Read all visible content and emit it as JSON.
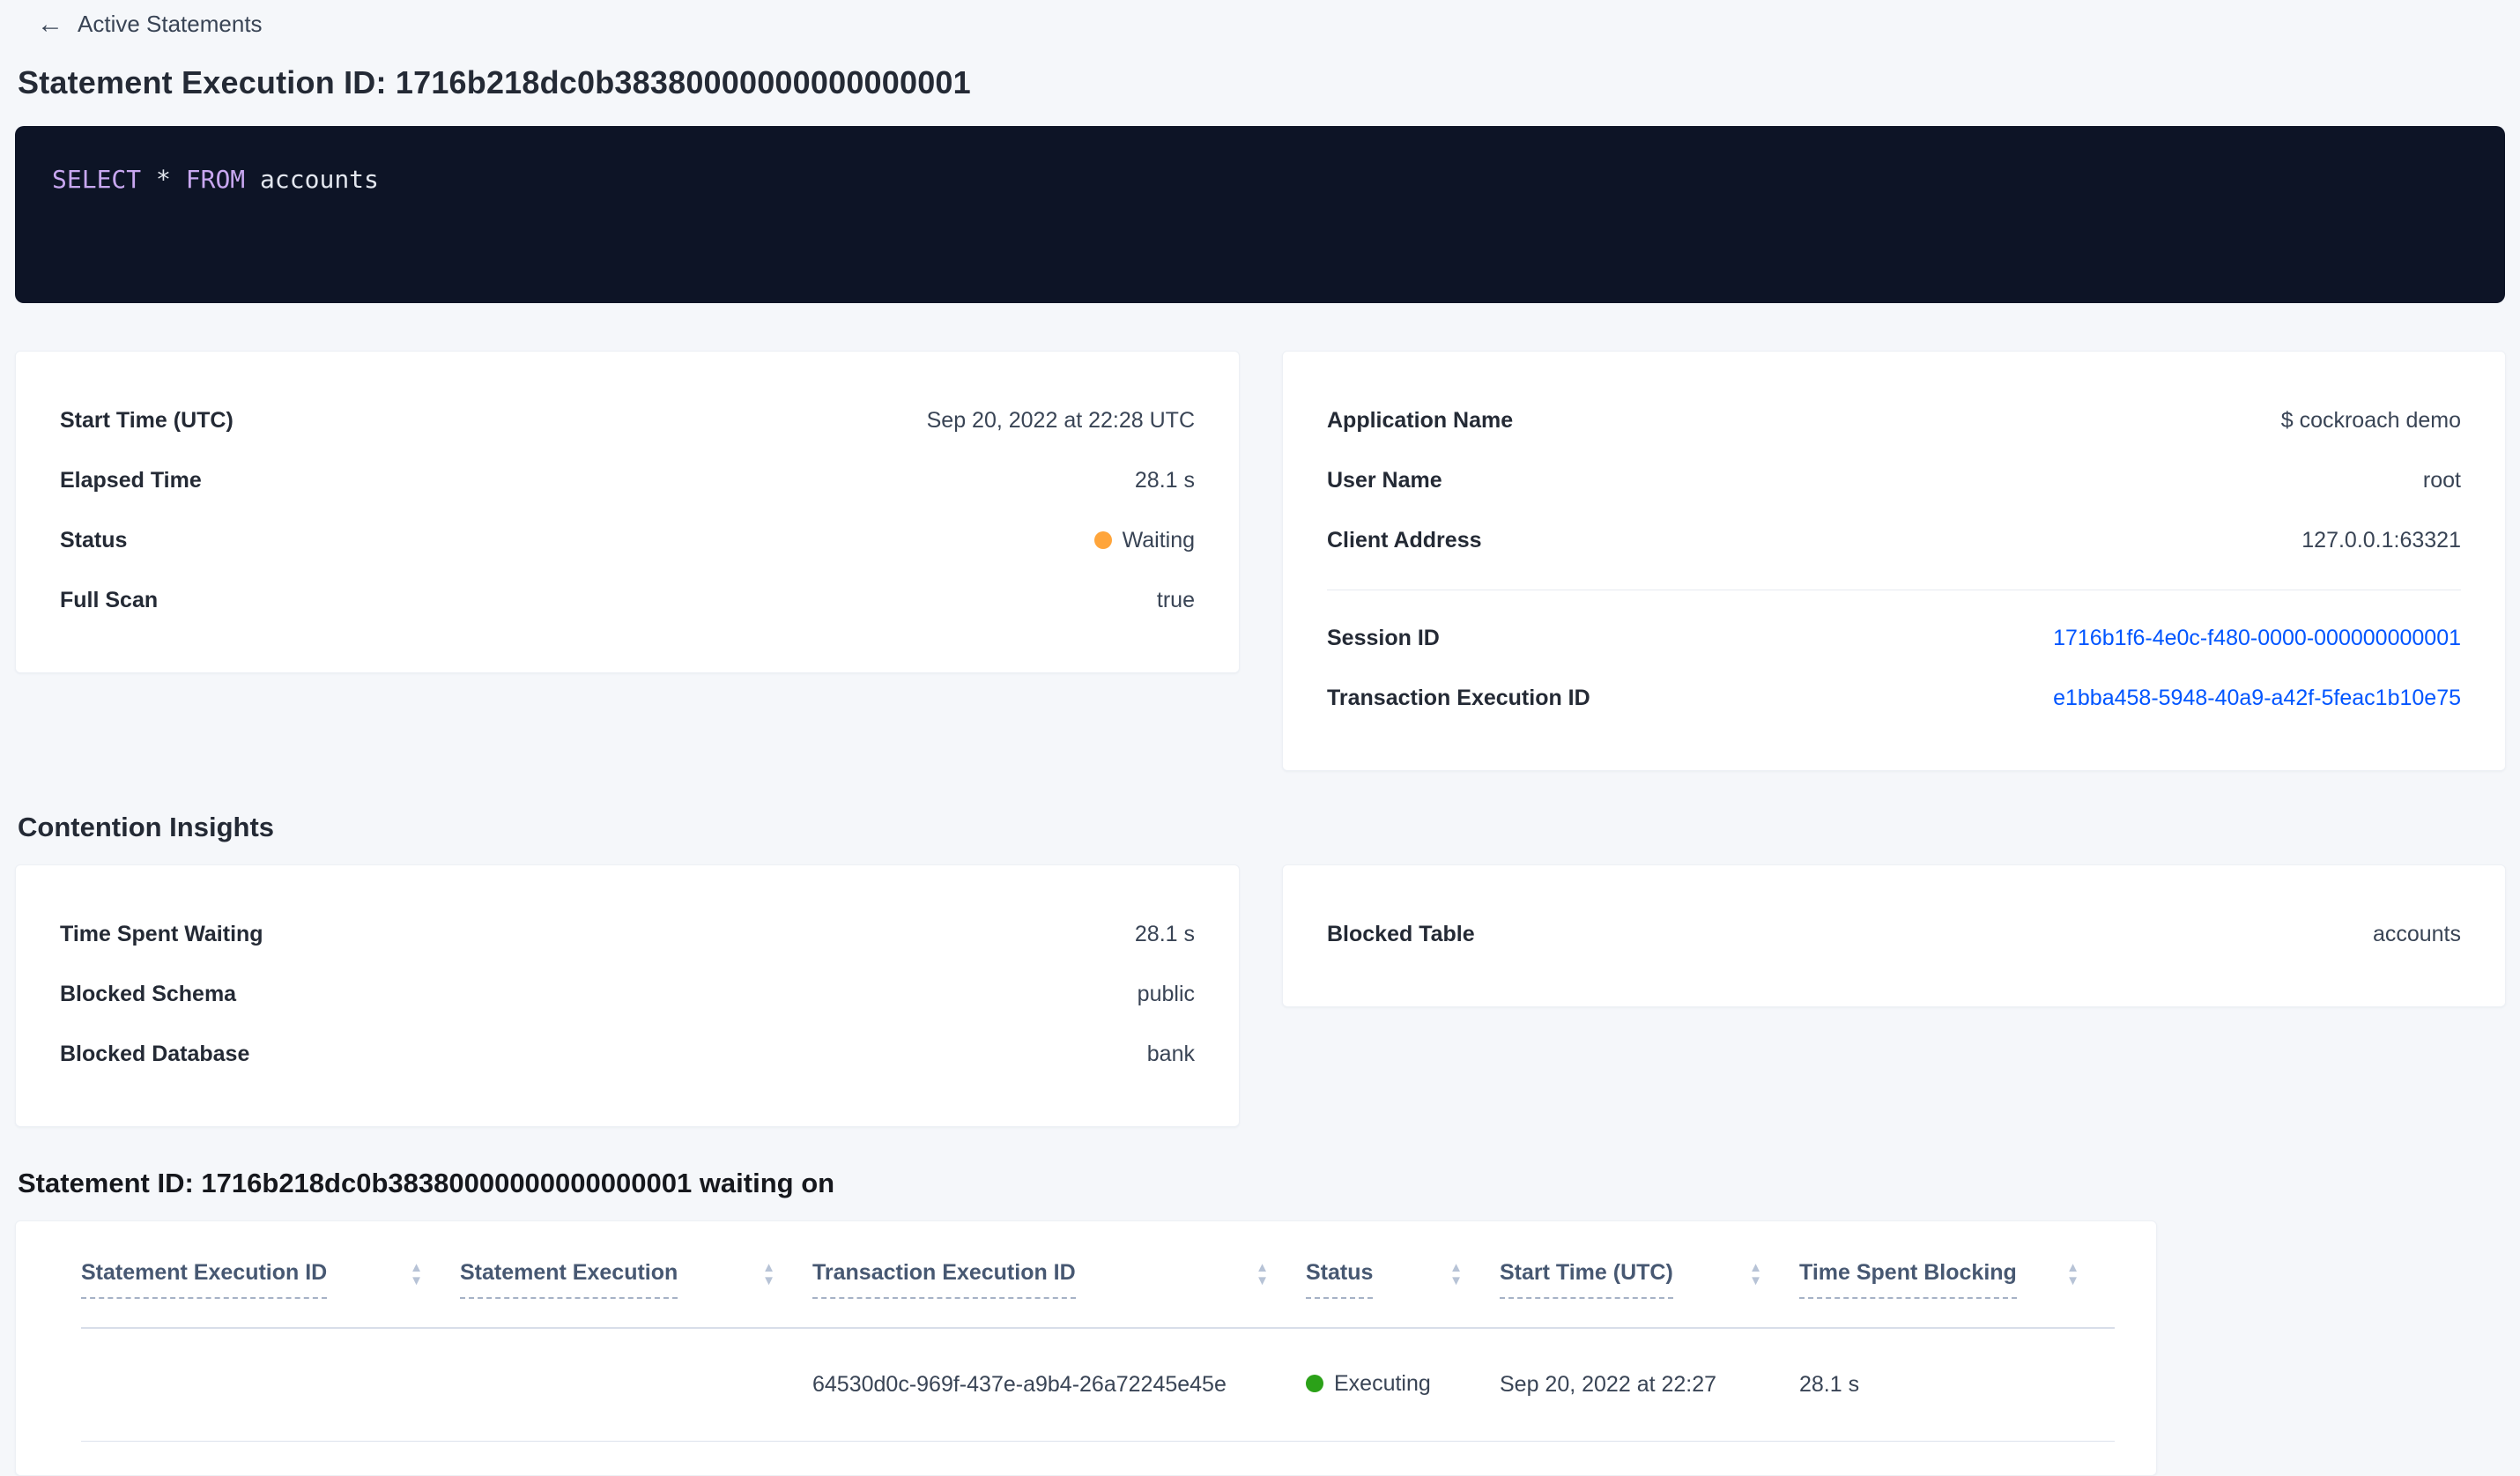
{
  "icons": {
    "back_arrow": "←",
    "sort_up": "▲",
    "sort_down": "▼"
  },
  "colors": {
    "page_background": "#F5F7FA",
    "link": "#0055FF",
    "status_waiting_dot": "#FFA53B",
    "status_executing_dot": "#2BA118",
    "sql_background": "#0D1426",
    "sql_keyword": "#C8A7F0"
  },
  "header": {
    "back_label": "Active Statements"
  },
  "page_title": "Statement Execution ID: 1716b218dc0b38380000000000000001",
  "sql": {
    "select_keyword": "SELECT",
    "star": " * ",
    "from_keyword": "FROM",
    "table_name": " accounts"
  },
  "details_left": {
    "rows": [
      {
        "label": "Start Time (UTC)",
        "value": "Sep 20, 2022 at 22:28 UTC"
      },
      {
        "label": "Elapsed Time",
        "value": "28.1 s"
      },
      {
        "label": "Status",
        "value": "Waiting"
      },
      {
        "label": "Full Scan",
        "value": "true"
      }
    ]
  },
  "details_right": {
    "rows_top": [
      {
        "label": "Application Name",
        "value": "$ cockroach demo"
      },
      {
        "label": "User Name",
        "value": "root"
      },
      {
        "label": "Client Address",
        "value": "127.0.0.1:63321"
      }
    ],
    "rows_links": [
      {
        "label": "Session ID",
        "value": "1716b1f6-4e0c-f480-0000-000000000001"
      },
      {
        "label": "Transaction Execution ID",
        "value": "e1bba458-5948-40a9-a42f-5feac1b10e75"
      }
    ]
  },
  "contention": {
    "heading": "Contention Insights",
    "left_rows": [
      {
        "label": "Time Spent Waiting",
        "value": "28.1 s"
      },
      {
        "label": "Blocked Schema",
        "value": "public"
      },
      {
        "label": "Blocked Database",
        "value": "bank"
      }
    ],
    "right_rows": [
      {
        "label": "Blocked Table",
        "value": "accounts"
      }
    ]
  },
  "waiting_on": {
    "heading": "Statement ID: 1716b218dc0b38380000000000000001 waiting on",
    "table": {
      "columns": [
        "Statement Execution ID",
        "Statement Execution",
        "Transaction Execution ID",
        "Status",
        "Start Time (UTC)",
        "Time Spent Blocking"
      ],
      "rows": [
        {
          "statement_execution_id": "",
          "statement_execution": "",
          "transaction_execution_id": "64530d0c-969f-437e-a9b4-26a72245e45e",
          "status": "Executing",
          "start_time": "Sep 20, 2022 at 22:27",
          "time_spent_blocking": "28.1 s"
        }
      ]
    }
  }
}
